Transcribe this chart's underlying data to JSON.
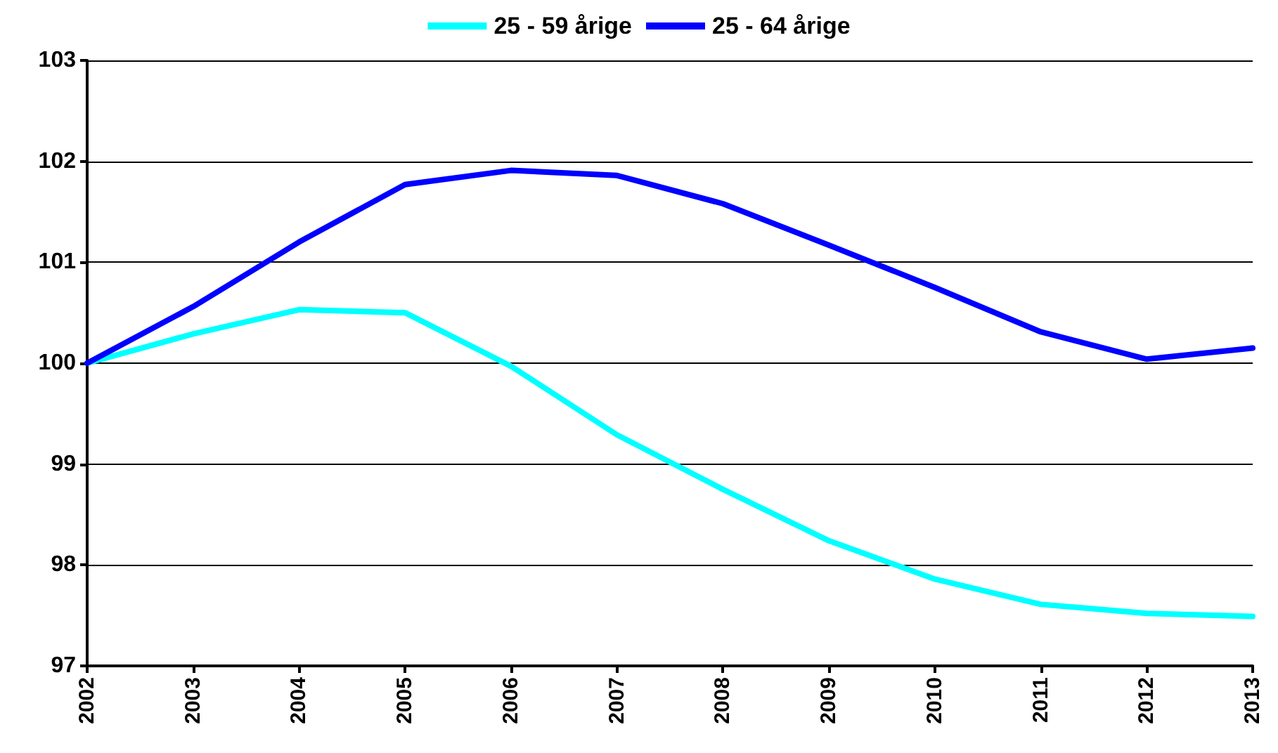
{
  "chart_data": {
    "type": "line",
    "categories": [
      "2002",
      "2003",
      "2004",
      "2005",
      "2006",
      "2007",
      "2008",
      "2009",
      "2010",
      "2011",
      "2012",
      "2013"
    ],
    "series": [
      {
        "name": "25 - 59 årige",
        "color": "#00ffff",
        "values": [
          100,
          100.29,
          100.53,
          100.5,
          99.97,
          99.29,
          98.75,
          98.24,
          97.86,
          97.61,
          97.52,
          97.49
        ]
      },
      {
        "name": "25 - 64 årige",
        "color": "#0000ff",
        "values": [
          100,
          100.56,
          101.2,
          101.77,
          101.91,
          101.86,
          101.58,
          101.17,
          100.75,
          100.31,
          100.04,
          100.15
        ]
      }
    ],
    "ylim": [
      97,
      103
    ],
    "yticks": [
      97,
      98,
      99,
      100,
      101,
      102,
      103
    ],
    "grid": "y",
    "legend": "top",
    "marker": "none",
    "line_style": "solid"
  }
}
